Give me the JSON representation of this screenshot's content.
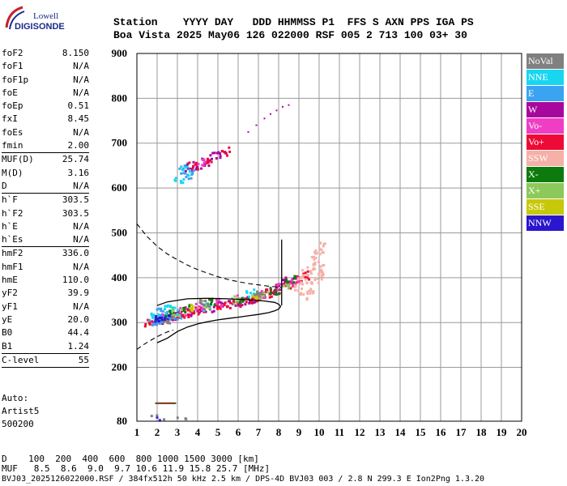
{
  "logo": {
    "line1": "Lowell",
    "line2": "DIGISONDE"
  },
  "header": {
    "row1": "Station    YYYY DAY   DDD HHMMSS P1  FFS S AXN PPS IGA PS",
    "row2": "Boa Vista 2025 May06 126 022000 RSF 005 2 713 100 03+ 30"
  },
  "param_groups": [
    [
      {
        "k": "foF2",
        "v": "8.150"
      },
      {
        "k": "foF1",
        "v": "N/A"
      },
      {
        "k": "foF1p",
        "v": "N/A"
      },
      {
        "k": "foE",
        "v": "N/A"
      },
      {
        "k": "foEp",
        "v": "0.51"
      },
      {
        "k": "fxI",
        "v": "8.45"
      },
      {
        "k": "foEs",
        "v": "N/A"
      },
      {
        "k": "fmin",
        "v": "2.00"
      }
    ],
    [
      {
        "k": "MUF(D)",
        "v": "25.74"
      },
      {
        "k": "M(D)",
        "v": "3.16"
      },
      {
        "k": "D",
        "v": "N/A"
      }
    ],
    [
      {
        "k": "h`F",
        "v": "303.5"
      },
      {
        "k": "h`F2",
        "v": "303.5"
      },
      {
        "k": "h`E",
        "v": "N/A"
      },
      {
        "k": "h`Es",
        "v": "N/A"
      }
    ],
    [
      {
        "k": "hmF2",
        "v": "336.0"
      },
      {
        "k": "hmF1",
        "v": "N/A"
      },
      {
        "k": "hmE",
        "v": "110.0"
      },
      {
        "k": "yF2",
        "v": "39.9"
      },
      {
        "k": "yF1",
        "v": "N/A"
      },
      {
        "k": "yE",
        "v": "20.0"
      },
      {
        "k": "B0",
        "v": "44.4"
      },
      {
        "k": "B1",
        "v": "1.24"
      }
    ],
    [
      {
        "k": "C-level",
        "v": "55"
      }
    ]
  ],
  "auto": {
    "line1": "Auto:",
    "line2": "Artist5",
    "line3": "500200"
  },
  "legend": [
    {
      "label": "NoVal",
      "color": "#808080"
    },
    {
      "label": "NNE",
      "color": "#19d6f0"
    },
    {
      "label": "E",
      "color": "#3aa3f2"
    },
    {
      "label": "W",
      "color": "#a8079e"
    },
    {
      "label": "Vo-",
      "color": "#ef3ec4"
    },
    {
      "label": "Vo+",
      "color": "#ee0a36"
    },
    {
      "label": "SSW",
      "color": "#f5b0a8"
    },
    {
      "label": "X-",
      "color": "#0d7a0d"
    },
    {
      "label": "X+",
      "color": "#8cc85a"
    },
    {
      "label": "SSE",
      "color": "#c8c80a"
    },
    {
      "label": "NNW",
      "color": "#2a16cf"
    }
  ],
  "footer": {
    "d_row": "D    100  200  400  600  800 1000 1500 3000 [km]",
    "muf_row": "MUF   8.5  8.6  9.0  9.7 10.6 11.9 15.8 25.7 [MHz]",
    "file_row": "BVJ03_2025126022000.RSF / 384fx512h 50 kHz 2.5 km / DPS-4D BVJ03 003 / 2.8 N 299.3 E Ion2Png 1.3.20"
  },
  "chart_data": {
    "type": "scatter",
    "xlim": [
      1,
      20
    ],
    "ylim": [
      80,
      900
    ],
    "x_ticks": [
      1,
      2,
      3,
      4,
      5,
      6,
      7,
      8,
      9,
      10,
      11,
      12,
      13,
      14,
      15,
      16,
      17,
      18,
      19,
      20
    ],
    "y_ticks": [
      80,
      200,
      300,
      400,
      500,
      600,
      700,
      800,
      900
    ],
    "grid": true,
    "legend_position": "right",
    "clusters": [
      {
        "name": "W",
        "color": "#a8079e",
        "points": [
          [
            2.2,
            305
          ],
          [
            2.7,
            312
          ],
          [
            3.2,
            318
          ],
          [
            3.7,
            322
          ],
          [
            4.2,
            327
          ],
          [
            4.7,
            332
          ],
          [
            5.2,
            337
          ],
          [
            5.7,
            342
          ],
          [
            6.2,
            347
          ],
          [
            6.7,
            352
          ],
          [
            7.2,
            358
          ],
          [
            7.6,
            366
          ],
          [
            7.9,
            375
          ],
          [
            8.2,
            386
          ],
          [
            8.5,
            397
          ],
          [
            3.6,
            645
          ],
          [
            4.0,
            652
          ],
          [
            4.4,
            660
          ],
          [
            4.8,
            668
          ],
          [
            5.2,
            675
          ]
        ]
      },
      {
        "name": "Vo+",
        "color": "#ee0a36",
        "points": [
          [
            1.6,
            298
          ],
          [
            2.0,
            303
          ],
          [
            2.5,
            310
          ],
          [
            3.0,
            318
          ],
          [
            3.5,
            320
          ],
          [
            4.0,
            325
          ],
          [
            4.5,
            330
          ],
          [
            5.0,
            335
          ],
          [
            5.5,
            340
          ],
          [
            6.0,
            343
          ],
          [
            6.5,
            348
          ],
          [
            7.0,
            355
          ],
          [
            7.5,
            365
          ],
          [
            8.0,
            372
          ],
          [
            8.5,
            385
          ],
          [
            9.0,
            395
          ],
          [
            9.3,
            405
          ],
          [
            3.8,
            650
          ],
          [
            4.6,
            665
          ],
          [
            5.4,
            680
          ]
        ]
      },
      {
        "name": "Vo-",
        "color": "#ef3ec4",
        "points": [
          [
            2.4,
            313
          ],
          [
            3.2,
            325
          ],
          [
            4.1,
            335
          ],
          [
            5.1,
            345
          ],
          [
            6.1,
            352
          ],
          [
            7.1,
            363
          ],
          [
            8.1,
            378
          ],
          [
            8.8,
            390
          ],
          [
            4.2,
            658
          ]
        ]
      },
      {
        "name": "E",
        "color": "#3aa3f2",
        "points": [
          [
            1.8,
            300
          ],
          [
            2.0,
            306
          ],
          [
            2.3,
            310
          ],
          [
            2.6,
            315
          ],
          [
            2.2,
            322
          ],
          [
            3.0,
            312
          ],
          [
            3.3,
            640
          ],
          [
            3.6,
            630
          ]
        ]
      },
      {
        "name": "NNE",
        "color": "#19d6f0",
        "points": [
          [
            1.9,
            312
          ],
          [
            2.5,
            330
          ],
          [
            2.9,
            325
          ],
          [
            3.1,
            622
          ],
          [
            3.4,
            638
          ],
          [
            4.5,
            335
          ],
          [
            6.6,
            365
          ]
        ]
      },
      {
        "name": "SSW",
        "color": "#f5b0a8",
        "points": [
          [
            9.0,
            380
          ],
          [
            9.2,
            395
          ],
          [
            9.4,
            410
          ],
          [
            9.6,
            425
          ],
          [
            9.8,
            440
          ],
          [
            10.0,
            460
          ],
          [
            10.2,
            470
          ],
          [
            9.5,
            370
          ],
          [
            9.8,
            395
          ],
          [
            10.1,
            420
          ],
          [
            10.0,
            405
          ],
          [
            9.3,
            360
          ]
        ]
      },
      {
        "name": "X-",
        "color": "#0d7a0d",
        "points": [
          [
            2.6,
            318
          ],
          [
            3.5,
            330
          ],
          [
            4.8,
            345
          ],
          [
            6.3,
            352
          ],
          [
            7.8,
            370
          ],
          [
            8.6,
            395
          ]
        ]
      },
      {
        "name": "X+",
        "color": "#8cc85a",
        "points": [
          [
            3.0,
            322
          ],
          [
            4.4,
            340
          ],
          [
            5.9,
            350
          ],
          [
            7.3,
            362
          ],
          [
            8.3,
            385
          ]
        ]
      },
      {
        "name": "SSE",
        "color": "#c8c80a",
        "points": [
          [
            3.8,
            332
          ],
          [
            6.8,
            360
          ]
        ]
      },
      {
        "name": "NNW",
        "color": "#2a16cf",
        "points": [
          [
            2.1,
            305
          ],
          [
            2.4,
            312
          ],
          [
            2.1,
            88
          ],
          [
            2.2,
            84
          ]
        ]
      },
      {
        "name": "NoVal",
        "color": "#808080",
        "points": [
          [
            2.5,
            302
          ],
          [
            4.3,
            343
          ],
          [
            7.0,
            368
          ],
          [
            1.9,
            84
          ],
          [
            2.5,
            82
          ],
          [
            3.0,
            82
          ],
          [
            3.6,
            82
          ]
        ]
      }
    ],
    "sparse_trace": [
      [
        6.9,
        740
      ],
      [
        7.3,
        755
      ],
      [
        7.6,
        765
      ],
      [
        7.9,
        773
      ],
      [
        8.2,
        781
      ],
      [
        8.5,
        785
      ],
      [
        6.5,
        725
      ]
    ],
    "low_band": {
      "x_range": [
        1.9,
        2.9
      ],
      "y": 120
    },
    "dashed_curve": [
      [
        1,
        520
      ],
      [
        1.5,
        492
      ],
      [
        2,
        470
      ],
      [
        2.5,
        453
      ],
      [
        3,
        440
      ],
      [
        3.5,
        428
      ],
      [
        4,
        418
      ],
      [
        4.5,
        410
      ],
      [
        5,
        402
      ],
      [
        5.5,
        396
      ],
      [
        6,
        391
      ],
      [
        6.5,
        387
      ],
      [
        7,
        384
      ],
      [
        7.5,
        381
      ],
      [
        8,
        379
      ],
      [
        8.15,
        378
      ]
    ],
    "lower_dashed": [
      [
        1,
        240
      ],
      [
        1.3,
        250
      ],
      [
        1.6,
        258
      ],
      [
        1.9,
        266
      ],
      [
        2.2,
        273
      ],
      [
        2.5,
        279
      ],
      [
        2.8,
        283
      ]
    ],
    "profile_solid": [
      [
        2.0,
        255
      ],
      [
        2.5,
        265
      ],
      [
        3.0,
        280
      ],
      [
        3.5,
        290
      ],
      [
        4.0,
        297
      ],
      [
        4.5,
        302
      ],
      [
        5.0,
        306
      ],
      [
        5.5,
        309
      ],
      [
        6.0,
        312
      ],
      [
        6.5,
        315
      ],
      [
        7.0,
        318
      ],
      [
        7.5,
        322
      ],
      [
        7.8,
        326
      ],
      [
        8.0,
        330
      ],
      [
        8.1,
        336
      ],
      [
        8.0,
        341
      ],
      [
        7.8,
        345
      ],
      [
        7.3,
        348
      ],
      [
        6.5,
        351
      ],
      [
        5.5,
        353
      ],
      [
        4.5,
        354
      ],
      [
        3.5,
        353
      ],
      [
        2.5,
        346
      ],
      [
        2.0,
        338
      ]
    ],
    "vertical_marker": {
      "x": 8.15,
      "y_range": [
        338,
        485
      ]
    }
  }
}
